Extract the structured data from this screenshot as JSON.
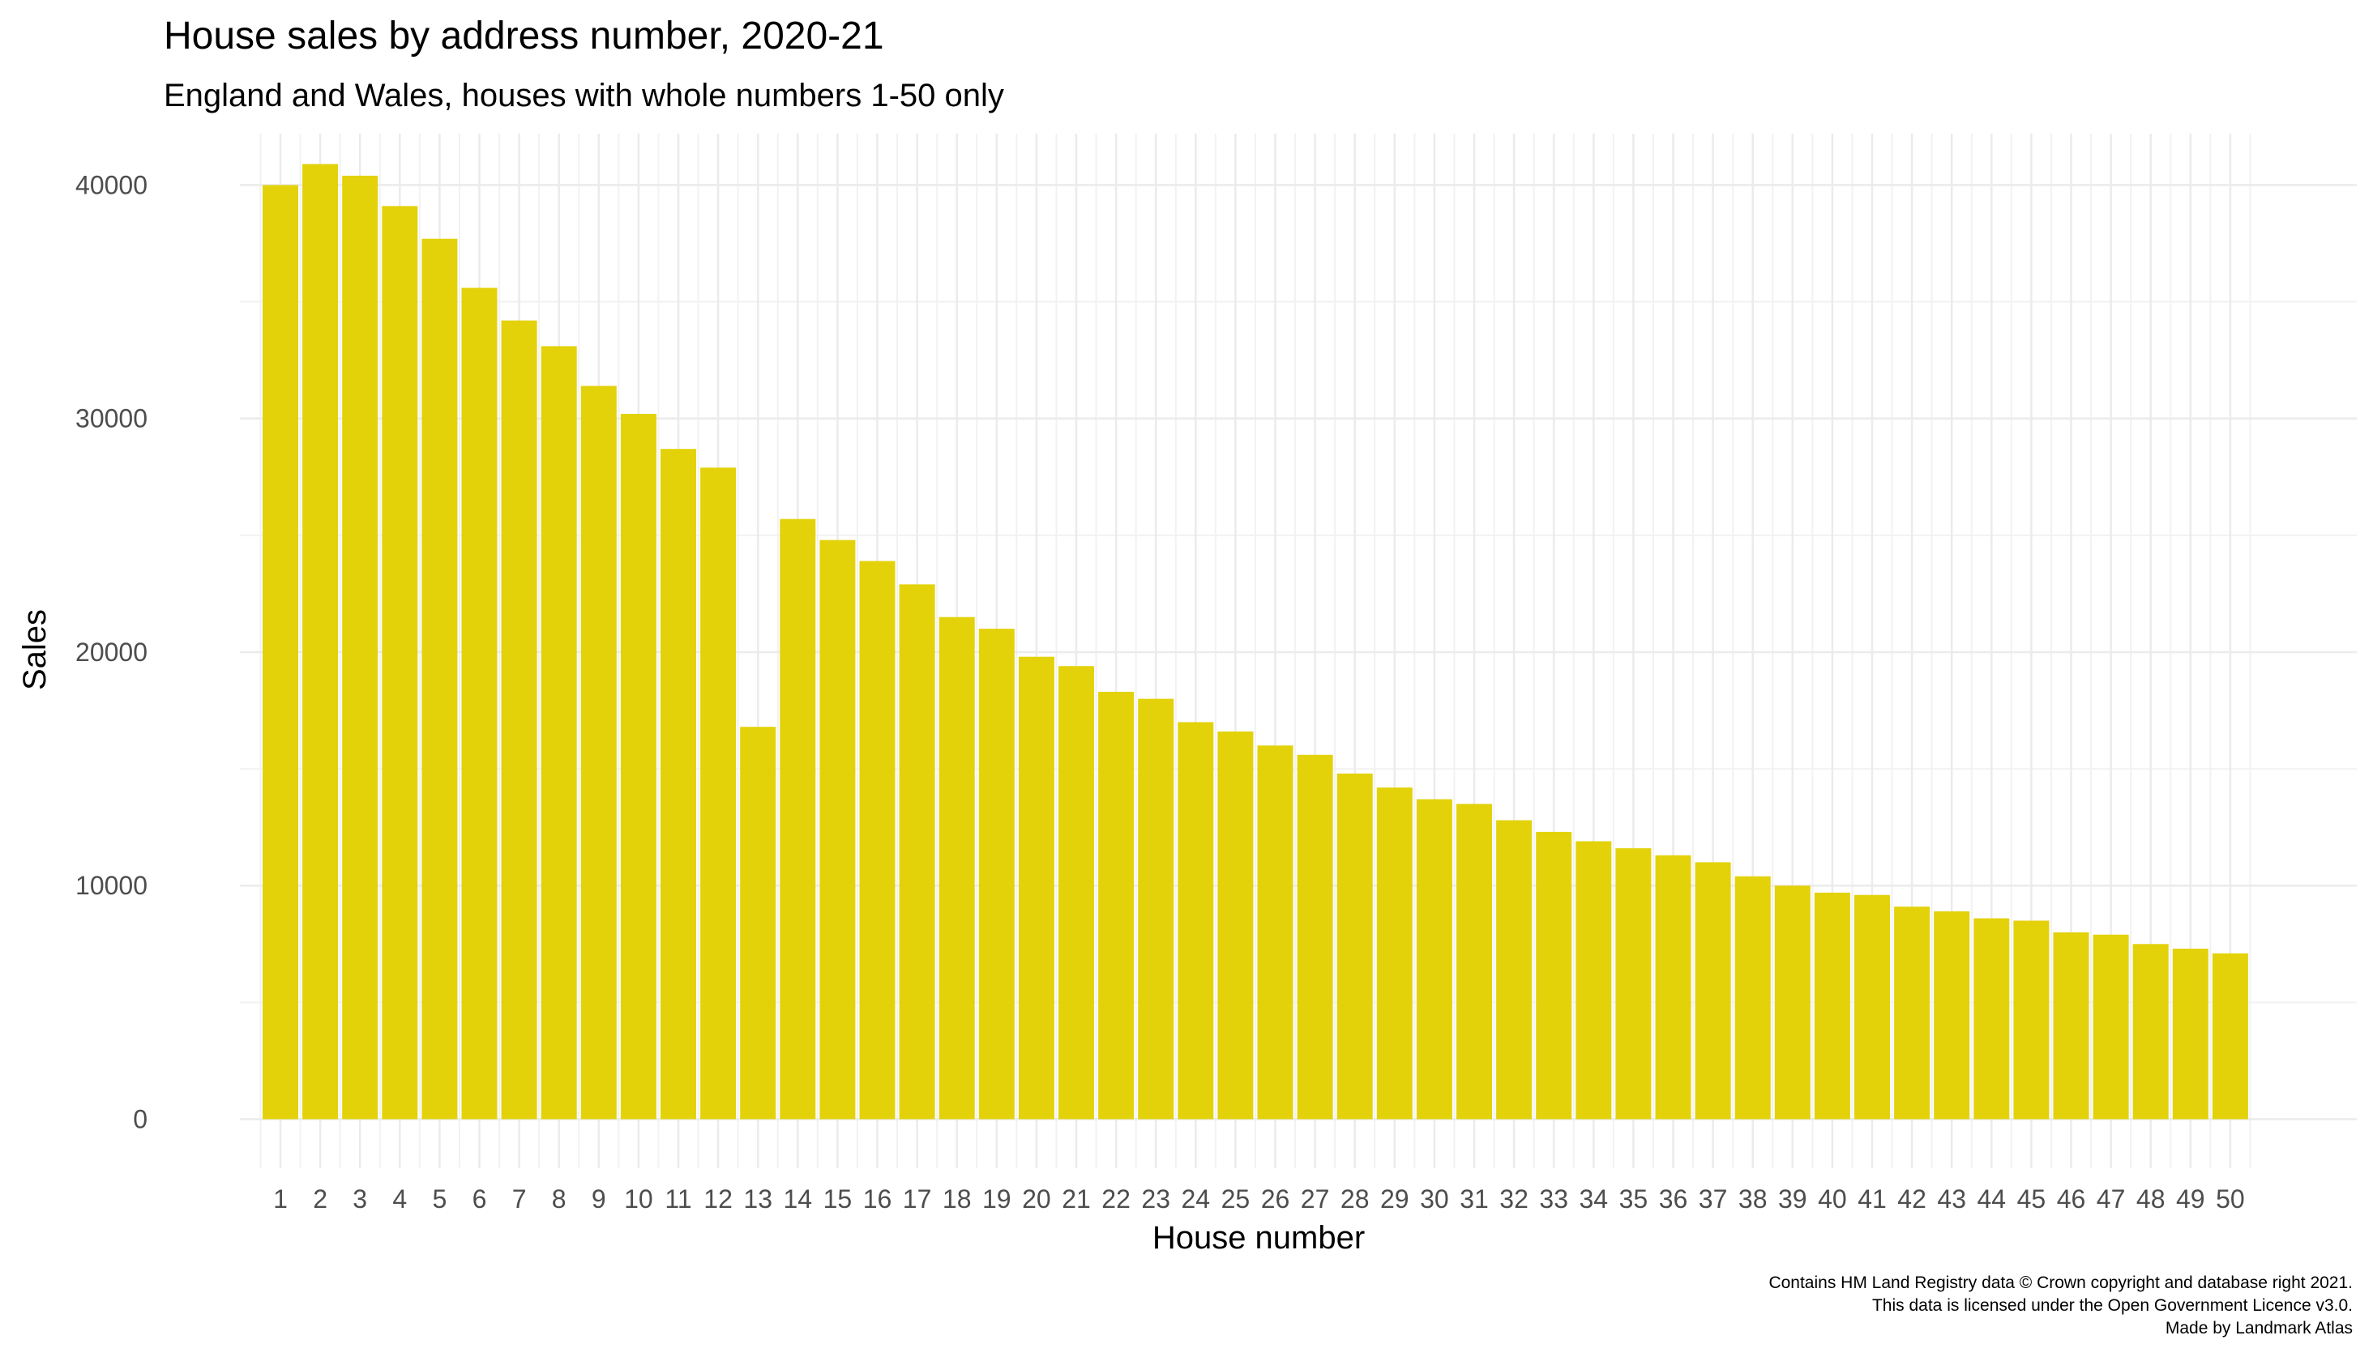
{
  "chart_data": {
    "type": "bar",
    "title": "House sales by address number, 2020-21",
    "subtitle": "England and Wales, houses with whole numbers 1-50 only",
    "xlabel": "House number",
    "ylabel": "Sales",
    "ylim": [
      -2100,
      42200
    ],
    "yticks": [
      0,
      10000,
      20000,
      30000,
      40000
    ],
    "ytick_labels": [
      "0",
      "10000",
      "20000",
      "30000",
      "40000"
    ],
    "grid": true,
    "bar_color": "#E3D20A",
    "categories": [
      "1",
      "2",
      "3",
      "4",
      "5",
      "6",
      "7",
      "8",
      "9",
      "10",
      "11",
      "12",
      "13",
      "14",
      "15",
      "16",
      "17",
      "18",
      "19",
      "20",
      "21",
      "22",
      "23",
      "24",
      "25",
      "26",
      "27",
      "28",
      "29",
      "30",
      "31",
      "32",
      "33",
      "34",
      "35",
      "36",
      "37",
      "38",
      "39",
      "40",
      "41",
      "42",
      "43",
      "44",
      "45",
      "46",
      "47",
      "48",
      "49",
      "50"
    ],
    "values": [
      40000,
      40900,
      40400,
      39100,
      37700,
      35600,
      34200,
      33100,
      31400,
      30200,
      28700,
      27900,
      16800,
      25700,
      24800,
      23900,
      22900,
      21500,
      21000,
      19800,
      19400,
      18300,
      18000,
      17000,
      16600,
      16000,
      15600,
      14800,
      14200,
      13700,
      13500,
      12800,
      12300,
      11900,
      11600,
      11300,
      11000,
      10400,
      10000,
      9700,
      9600,
      9100,
      8900,
      8600,
      8500,
      8000,
      7900,
      7500,
      7300,
      7100
    ],
    "caption": [
      "Contains HM Land Registry data © Crown copyright and database right 2021.",
      "This data is licensed under the Open Government Licence v3.0.",
      "Made by Landmark Atlas"
    ]
  }
}
